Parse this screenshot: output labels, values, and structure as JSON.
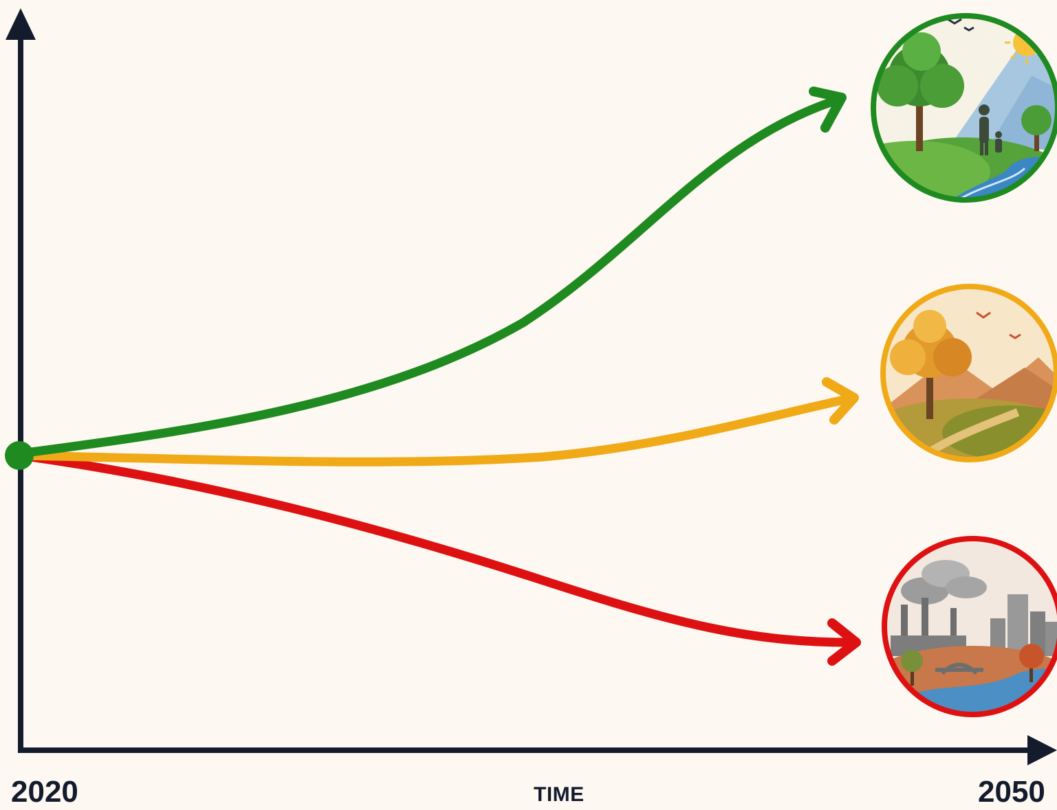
{
  "x_axis": {
    "start_label": "2020",
    "middle_label": "TIME",
    "end_label": "2050"
  },
  "colors": {
    "background": "#fdf8f2",
    "axis": "#141b2d",
    "origin_dot": "#1f8a1f",
    "green_path": "#1f8a1f",
    "orange_path": "#f0aa18",
    "red_path": "#dd1111"
  },
  "scenarios": [
    {
      "color": "green",
      "outcome_icon": "thriving-nature-scene-icon"
    },
    {
      "color": "orange",
      "outcome_icon": "dry-autumn-landscape-icon"
    },
    {
      "color": "red",
      "outcome_icon": "polluted-industrial-city-icon"
    }
  ]
}
